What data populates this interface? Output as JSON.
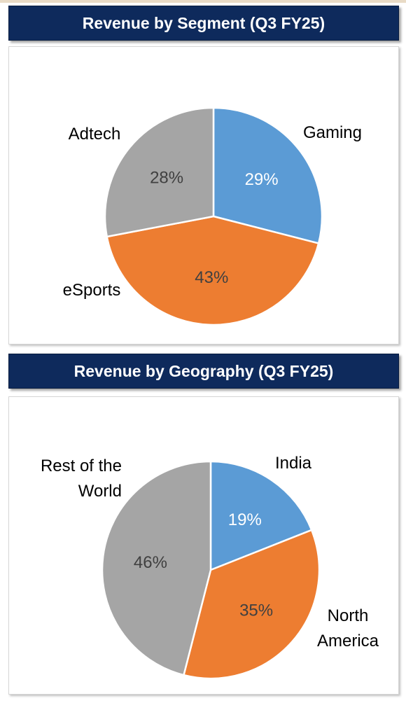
{
  "chart_data": [
    {
      "type": "pie",
      "title": "Revenue by Segment (Q3 FY25)",
      "slices": [
        {
          "label": "Gaming",
          "value": 29,
          "display": "29%",
          "color": "#5b9bd5",
          "text_color": "#ffffff"
        },
        {
          "label": "eSports",
          "value": 43,
          "display": "43%",
          "color": "#ed7d31",
          "text_color": "#404040"
        },
        {
          "label": "Adtech",
          "value": 28,
          "display": "28%",
          "color": "#a5a5a5",
          "text_color": "#404040"
        }
      ]
    },
    {
      "type": "pie",
      "title": "Revenue by Geography (Q3 FY25)",
      "slices": [
        {
          "label": "India",
          "value": 19,
          "display": "19%",
          "color": "#5b9bd5",
          "text_color": "#ffffff"
        },
        {
          "label": "North America",
          "value": 35,
          "display": "35%",
          "color": "#ed7d31",
          "text_color": "#404040"
        },
        {
          "label": "Rest of the World",
          "value": 46,
          "display": "46%",
          "color": "#a5a5a5",
          "text_color": "#404040"
        }
      ]
    }
  ]
}
